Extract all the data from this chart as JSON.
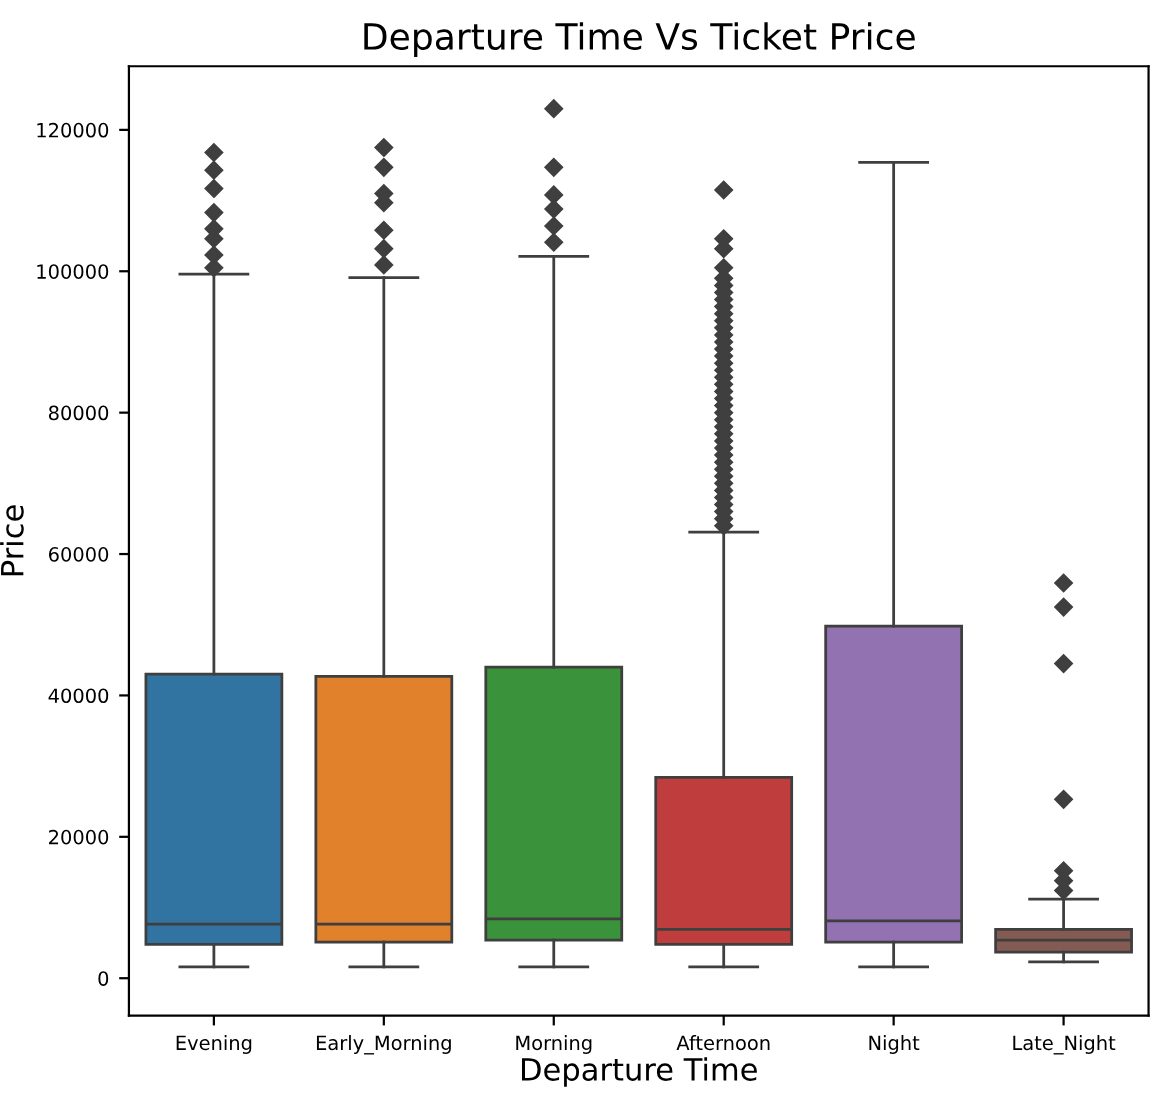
{
  "chart_data": {
    "type": "box",
    "title": "Departure Time Vs Ticket Price",
    "xlabel": "Departure Time",
    "ylabel": "Price",
    "categories": [
      "Evening",
      "Early_Morning",
      "Morning",
      "Afternoon",
      "Night",
      "Late_Night"
    ],
    "colors": [
      "#3274a1",
      "#e1812c",
      "#3a923a",
      "#c03d3e",
      "#9372b2",
      "#845b53"
    ],
    "boxes": [
      {
        "low": 1600,
        "q1": 4800,
        "median": 7650,
        "q3": 43000,
        "high": 99600,
        "outliers": [
          116800,
          114300,
          111700,
          108300,
          106000,
          104600,
          102300,
          100500
        ]
      },
      {
        "low": 1600,
        "q1": 5100,
        "median": 7650,
        "q3": 42700,
        "high": 99100,
        "outliers": [
          117500,
          114700,
          111000,
          109700,
          105800,
          103200,
          100900
        ]
      },
      {
        "low": 1600,
        "q1": 5400,
        "median": 8400,
        "q3": 44000,
        "high": 102100,
        "outliers": [
          123000,
          114700,
          110800,
          108800,
          106400,
          104100
        ]
      },
      {
        "low": 1600,
        "q1": 4800,
        "median": 6900,
        "q3": 28400,
        "high": 63100,
        "outliers": [
          111500,
          104600,
          103200,
          100500,
          99000,
          98000,
          97000,
          96000,
          95000,
          94000,
          93000,
          92000,
          91000,
          90000,
          89000,
          88000,
          87000,
          86000,
          85000,
          84000,
          83000,
          82000,
          81000,
          80000,
          79000,
          78000,
          77000,
          76000,
          75000,
          74000,
          73000,
          72000,
          71000,
          70000,
          69000,
          68000,
          67000,
          66000,
          65000,
          64000
        ]
      },
      {
        "low": 1600,
        "q1": 5100,
        "median": 8100,
        "q3": 49800,
        "high": 115400
      },
      {
        "low": 2300,
        "q1": 3700,
        "median": 5400,
        "q3": 6900,
        "high": 11200,
        "outliers": [
          15200,
          13800,
          12400,
          25300,
          44500,
          52500,
          55900
        ]
      }
    ],
    "ylim": [
      -5300,
      129000
    ],
    "yticks": [
      0,
      20000,
      40000,
      60000,
      80000,
      100000,
      120000
    ],
    "grid": false,
    "legend": false
  }
}
